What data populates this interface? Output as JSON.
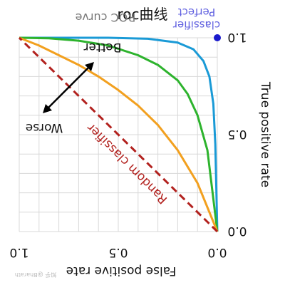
{
  "page_title": "roc曲线",
  "chart_data": {
    "type": "line",
    "title": "ROC curve",
    "xlabel": "False positive rate",
    "ylabel": "True positive rate",
    "xlim": [
      0,
      1
    ],
    "ylim": [
      0,
      1
    ],
    "mirrored": true,
    "grid": true,
    "xticks": [
      "0.0",
      "0.5",
      "1.0"
    ],
    "yticks": [
      "0.0",
      "0.5",
      "1.0"
    ],
    "series": [
      {
        "color": "#1a9ad6",
        "points": [
          [
            0,
            0
          ],
          [
            0.01,
            0.45
          ],
          [
            0.02,
            0.66
          ],
          [
            0.04,
            0.8
          ],
          [
            0.07,
            0.88
          ],
          [
            0.12,
            0.94
          ],
          [
            0.2,
            0.975
          ],
          [
            0.35,
            0.995
          ],
          [
            0.55,
            1
          ],
          [
            1,
            1
          ]
        ]
      },
      {
        "color": "#2db32d",
        "points": [
          [
            0,
            0
          ],
          [
            0.05,
            0.42
          ],
          [
            0.1,
            0.6
          ],
          [
            0.15,
            0.71
          ],
          [
            0.2,
            0.78
          ],
          [
            0.3,
            0.86
          ],
          [
            0.4,
            0.91
          ],
          [
            0.55,
            0.96
          ],
          [
            0.7,
            0.985
          ],
          [
            0.85,
            0.997
          ],
          [
            1,
            1
          ]
        ]
      },
      {
        "color": "#f2a01f",
        "points": [
          [
            0,
            0
          ],
          [
            0.1,
            0.25
          ],
          [
            0.2,
            0.42
          ],
          [
            0.3,
            0.55
          ],
          [
            0.4,
            0.65
          ],
          [
            0.5,
            0.73
          ],
          [
            0.6,
            0.8
          ],
          [
            0.7,
            0.86
          ],
          [
            0.8,
            0.91
          ],
          [
            0.9,
            0.96
          ],
          [
            1,
            1
          ]
        ]
      },
      {
        "name": "Random classifier",
        "color": "#b2211e",
        "dashed": true,
        "points": [
          [
            0,
            0
          ],
          [
            1,
            1
          ]
        ]
      }
    ],
    "perfect_point": {
      "x": 0,
      "y": 1,
      "color": "#1a1acc",
      "label_line1": "Perfect",
      "label_line2": "classifier"
    },
    "annotations": {
      "better": "Better",
      "worse": "Worse",
      "random_label": "Random classifier"
    },
    "watermark": "知乎 @Bharath"
  }
}
